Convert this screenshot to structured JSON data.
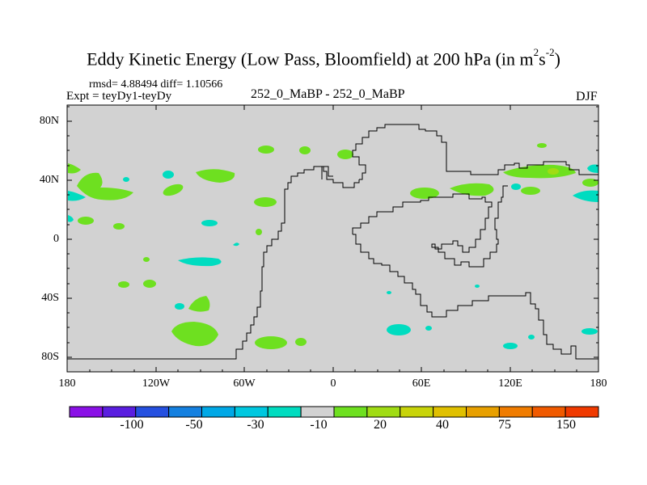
{
  "title": {
    "main": "Eddy Kinetic Energy (Low Pass, Bloomfield) at 200 hPa (in m",
    "exp1": "2",
    "mid": "s",
    "exp2": "-2",
    "close": ")"
  },
  "subtitle": {
    "stats": "rmsd= 4.88494 diff= 1.10566",
    "experiment": "Expt = teyDy1-teyDy",
    "runs": "252_0_MaBP - 252_0_MaBP",
    "season": "DJF"
  },
  "map": {
    "background_color": "#d2d2d2",
    "y_ticks": [
      "80N",
      "40N",
      "0",
      "40S",
      "80S"
    ],
    "x_ticks": [
      "180",
      "120W",
      "60W",
      "0",
      "60E",
      "120E",
      "180"
    ]
  },
  "colorbar": {
    "colors": [
      "#8a10e6",
      "#5a1ee0",
      "#2550e0",
      "#1480e0",
      "#00a8e6",
      "#00c8e0",
      "#00dcc0",
      "#d2d2d2",
      "#6ee020",
      "#a0dc14",
      "#c8d40a",
      "#e0c000",
      "#e8a000",
      "#f07c00",
      "#f05a00",
      "#f03a00"
    ],
    "labels": [
      "-100",
      "-50",
      "-30",
      "-10",
      "20",
      "40",
      "75",
      "150"
    ]
  }
}
